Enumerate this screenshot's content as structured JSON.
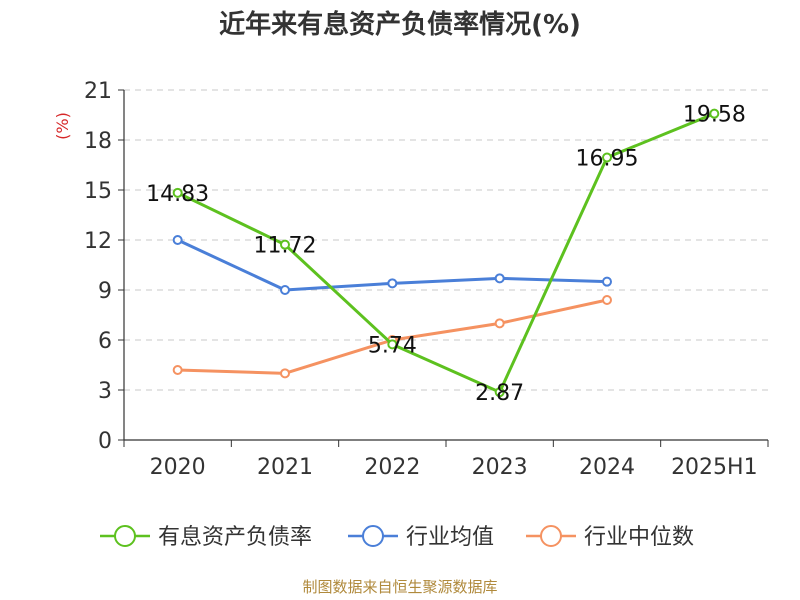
{
  "title": "近年来有息资产负债率情况(%)",
  "source": "制图数据来自恒生聚源数据库",
  "chart_data": {
    "type": "line",
    "categories": [
      "2020",
      "2021",
      "2022",
      "2023",
      "2024",
      "2025H1"
    ],
    "ylabel": "(%)",
    "ylim": [
      0,
      21
    ],
    "yticks": [
      "0",
      "3",
      "6",
      "9",
      "12",
      "15",
      "18",
      "21"
    ],
    "grid": "horizontal-dashed",
    "legend_position": "bottom-center",
    "series": [
      {
        "name": "有息资产负债率",
        "color": "#5dc11f",
        "values": [
          14.83,
          11.72,
          5.74,
          2.87,
          16.95,
          19.58
        ],
        "labels": [
          "14.83",
          "11.72",
          "5.74",
          "2.87",
          "16.95",
          "19.58"
        ]
      },
      {
        "name": "行业均值",
        "color": "#4a7fd8",
        "values": [
          12.0,
          9.0,
          9.4,
          9.7,
          9.5,
          null
        ]
      },
      {
        "name": "行业中位数",
        "color": "#f59261",
        "values": [
          4.2,
          4.0,
          6.0,
          7.0,
          8.4,
          null
        ]
      }
    ]
  }
}
